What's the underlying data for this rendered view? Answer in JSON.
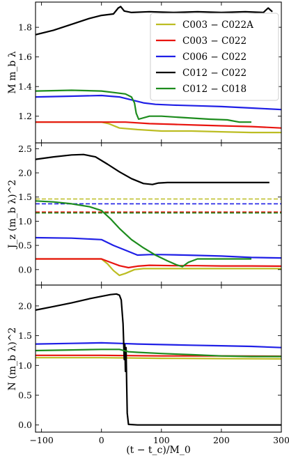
{
  "chart_data": [
    {
      "type": "line",
      "ylabel": "M m_b λ",
      "xlim": [
        -110,
        300
      ],
      "ylim": [
        1.02,
        1.97
      ],
      "yticks": [
        "1.2",
        "1.4",
        "1.6",
        "1.8"
      ],
      "ytick_values": [
        1.2,
        1.4,
        1.6,
        1.8
      ],
      "legend_position": "upper-right",
      "series": [
        {
          "name": "C003 − C022A",
          "color": "#bcbd22",
          "x": [
            -110,
            0,
            12,
            30,
            60,
            100,
            150,
            200,
            250,
            300
          ],
          "y": [
            1.16,
            1.16,
            1.15,
            1.12,
            1.11,
            1.1,
            1.1,
            1.095,
            1.09,
            1.09
          ]
        },
        {
          "name": "C003 − C022",
          "color": "#e8140f",
          "x": [
            -110,
            0,
            40,
            80,
            120,
            160,
            200,
            250,
            300
          ],
          "y": [
            1.16,
            1.16,
            1.16,
            1.15,
            1.145,
            1.14,
            1.135,
            1.13,
            1.12
          ]
        },
        {
          "name": "C006 − C022",
          "color": "#1f1fe6",
          "x": [
            -110,
            -50,
            0,
            30,
            50,
            70,
            90,
            120,
            160,
            200,
            250,
            300
          ],
          "y": [
            1.33,
            1.335,
            1.34,
            1.33,
            1.31,
            1.29,
            1.28,
            1.275,
            1.27,
            1.265,
            1.255,
            1.245
          ]
        },
        {
          "name": "C012 − C022",
          "color": "#000000",
          "x": [
            -110,
            -80,
            -50,
            -20,
            0,
            20,
            28,
            32,
            38,
            50,
            80,
            120,
            160,
            200,
            240,
            270,
            278,
            285
          ],
          "y": [
            1.75,
            1.78,
            1.82,
            1.86,
            1.88,
            1.89,
            1.93,
            1.94,
            1.91,
            1.9,
            1.905,
            1.9,
            1.905,
            1.9,
            1.905,
            1.9,
            1.93,
            1.905
          ]
        },
        {
          "name": "C012 − C018",
          "color": "#1d8c1d",
          "x": [
            -110,
            -50,
            0,
            20,
            40,
            50,
            55,
            58,
            62,
            80,
            100,
            140,
            180,
            210,
            230,
            250
          ],
          "y": [
            1.37,
            1.375,
            1.37,
            1.36,
            1.35,
            1.33,
            1.29,
            1.22,
            1.18,
            1.2,
            1.2,
            1.19,
            1.18,
            1.175,
            1.16,
            1.16
          ]
        }
      ]
    },
    {
      "type": "line",
      "ylabel": "J_z (m_b λ)^2",
      "xlim": [
        -110,
        300
      ],
      "ylim": [
        -0.32,
        2.62
      ],
      "yticks": [
        "0.0",
        "0.5",
        "1.0",
        "1.5",
        "2.0",
        "2.5"
      ],
      "ytick_values": [
        0.0,
        0.5,
        1.0,
        1.5,
        2.0,
        2.5
      ],
      "series": [
        {
          "name": "C003 − C022A",
          "color": "#bcbd22",
          "x": [
            -110,
            0,
            10,
            20,
            30,
            40,
            55,
            70,
            100,
            150,
            200,
            250,
            300
          ],
          "y": [
            0.22,
            0.22,
            0.12,
            -0.02,
            -0.12,
            -0.08,
            0.0,
            0.02,
            0.02,
            0.02,
            0.02,
            0.02,
            0.02
          ]
        },
        {
          "name": "C003 − C022",
          "color": "#e8140f",
          "x": [
            -110,
            0,
            15,
            30,
            45,
            60,
            80,
            120,
            160,
            200,
            250,
            300
          ],
          "y": [
            0.22,
            0.22,
            0.15,
            0.08,
            0.04,
            0.07,
            0.09,
            0.08,
            0.08,
            0.075,
            0.075,
            0.07
          ]
        },
        {
          "name": "C006 − C022",
          "color": "#1f1fe6",
          "x": [
            -110,
            -50,
            0,
            20,
            40,
            60,
            80,
            100,
            140,
            200,
            250,
            300
          ],
          "y": [
            0.66,
            0.65,
            0.62,
            0.5,
            0.4,
            0.3,
            0.31,
            0.31,
            0.3,
            0.28,
            0.25,
            0.24
          ]
        },
        {
          "name": "C012 − C022",
          "color": "#000000",
          "x": [
            -110,
            -80,
            -50,
            -30,
            -10,
            10,
            30,
            50,
            70,
            85,
            95,
            110,
            150,
            200,
            280
          ],
          "y": [
            2.28,
            2.33,
            2.37,
            2.38,
            2.33,
            2.18,
            2.02,
            1.88,
            1.78,
            1.76,
            1.79,
            1.8,
            1.8,
            1.8,
            1.8
          ]
        },
        {
          "name": "C012 − C018",
          "color": "#1d8c1d",
          "x": [
            -110,
            -80,
            -50,
            -20,
            0,
            15,
            30,
            50,
            70,
            90,
            110,
            125,
            135,
            145,
            160,
            200,
            250
          ],
          "y": [
            1.42,
            1.4,
            1.36,
            1.3,
            1.22,
            1.05,
            0.85,
            0.62,
            0.45,
            0.3,
            0.18,
            0.1,
            0.06,
            0.15,
            0.22,
            0.22,
            0.22
          ]
        }
      ],
      "reference_lines": [
        {
          "color": "#bcbd22",
          "y": 1.46
        },
        {
          "color": "#1f1fe6",
          "y": 1.36
        },
        {
          "color": "#e8140f",
          "y": 1.19
        },
        {
          "color": "#1d8c1d",
          "y": 1.17
        }
      ]
    },
    {
      "type": "line",
      "ylabel": "N (m_b λ)^2",
      "xlabel": "(t − t_c)/M_0",
      "xlim": [
        -110,
        300
      ],
      "ylim": [
        -0.12,
        2.35
      ],
      "xticks": [
        "−100",
        "0",
        "100",
        "200",
        "300"
      ],
      "xtick_values": [
        -100,
        0,
        100,
        200,
        300
      ],
      "yticks": [
        "0.0",
        "0.5",
        "1.0",
        "1.5",
        "2.0"
      ],
      "ytick_values": [
        0.0,
        0.5,
        1.0,
        1.5,
        2.0
      ],
      "series": [
        {
          "name": "C003 − C022A",
          "color": "#bcbd22",
          "x": [
            -110,
            0,
            100,
            200,
            300
          ],
          "y": [
            1.13,
            1.13,
            1.12,
            1.115,
            1.11
          ]
        },
        {
          "name": "C003 − C022",
          "color": "#e8140f",
          "x": [
            -110,
            0,
            100,
            200,
            300
          ],
          "y": [
            1.17,
            1.17,
            1.16,
            1.16,
            1.155
          ]
        },
        {
          "name": "C006 − C022",
          "color": "#1f1fe6",
          "x": [
            -110,
            -50,
            0,
            30,
            60,
            100,
            150,
            200,
            250,
            300
          ],
          "y": [
            1.36,
            1.37,
            1.38,
            1.37,
            1.36,
            1.35,
            1.34,
            1.33,
            1.32,
            1.3
          ]
        },
        {
          "name": "C012 − C022",
          "color": "#000000",
          "x": [
            -110,
            -80,
            -50,
            -20,
            0,
            15,
            25,
            30,
            33,
            36,
            38,
            39,
            40,
            41,
            42,
            43,
            45,
            60,
            100,
            150,
            200,
            250,
            300
          ],
          "y": [
            1.93,
            1.99,
            2.05,
            2.12,
            2.16,
            2.19,
            2.2,
            2.18,
            2.1,
            1.7,
            1.1,
            1.35,
            0.9,
            1.3,
            0.7,
            0.2,
            0.01,
            0.0,
            0.0,
            0.0,
            0.0,
            0.0,
            0.0
          ]
        },
        {
          "name": "C012 − C018",
          "color": "#1d8c1d",
          "x": [
            -110,
            -50,
            0,
            30,
            45,
            60,
            100,
            150,
            200,
            250,
            300
          ],
          "y": [
            1.25,
            1.26,
            1.27,
            1.27,
            1.23,
            1.22,
            1.2,
            1.18,
            1.16,
            1.15,
            1.15
          ]
        }
      ]
    }
  ]
}
